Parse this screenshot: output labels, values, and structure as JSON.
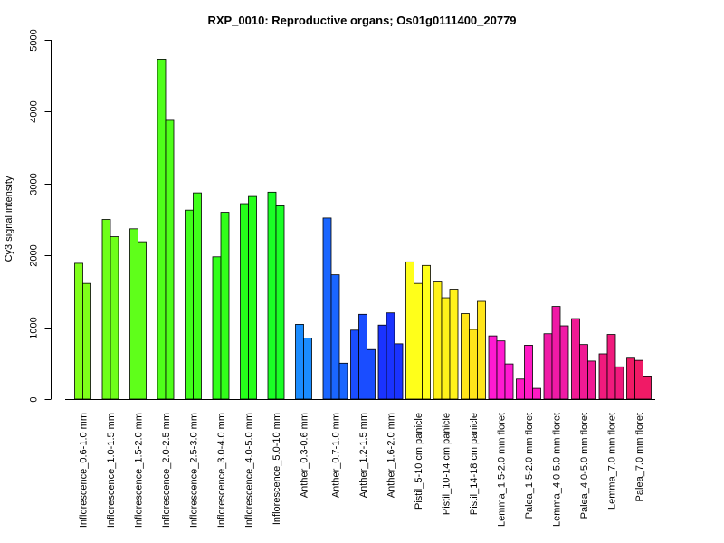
{
  "chart_data": {
    "type": "bar",
    "title": "RXP_0010: Reproductive organs; Os01g0111400_20779",
    "ylabel": "Cy3 signal intensity",
    "xlabel": "",
    "ylim": [
      0,
      5000
    ],
    "yticks": [
      0,
      1000,
      2000,
      3000,
      4000,
      5000
    ],
    "grid": false,
    "legend": "none",
    "groups": [
      {
        "label": "Inflorescence_0.6-1.0 mm",
        "color": "#7FFF1A",
        "values": [
          1890,
          1610
        ]
      },
      {
        "label": "Inflorescence_1.0-1.5 mm",
        "color": "#6FFF1A",
        "values": [
          2500,
          2260
        ]
      },
      {
        "label": "Inflorescence_1.5-2.0 mm",
        "color": "#5FFF1A",
        "values": [
          2370,
          2190
        ]
      },
      {
        "label": "Inflorescence_2.0-2.5 mm",
        "color": "#4FFF1A",
        "values": [
          4730,
          3880
        ]
      },
      {
        "label": "Inflorescence_2.5-3.0 mm",
        "color": "#40FF1A",
        "values": [
          2630,
          2870
        ]
      },
      {
        "label": "Inflorescence_3.0-4.0 mm",
        "color": "#32FF1A",
        "values": [
          1980,
          2600
        ]
      },
      {
        "label": "Inflorescence_4.0-5.0 mm",
        "color": "#26FF1A",
        "values": [
          2720,
          2820
        ]
      },
      {
        "label": "Inflorescence_5.0-10 mm",
        "color": "#1AFF26",
        "values": [
          2880,
          2690
        ]
      },
      {
        "label": "Anther_0.3-0.6 mm",
        "color": "#1A8CFF",
        "values": [
          1040,
          850
        ]
      },
      {
        "label": "Anther_0.7-1.0 mm",
        "color": "#1A66FF",
        "values": [
          2520,
          1730,
          500
        ]
      },
      {
        "label": "Anther_1.2-1.5 mm",
        "color": "#1A4DFF",
        "values": [
          960,
          1180,
          690
        ]
      },
      {
        "label": "Anther_1.6-2.0 mm",
        "color": "#1A33FF",
        "values": [
          1030,
          1200,
          770
        ]
      },
      {
        "label": "Pistil_5-10 cm panicle",
        "color": "#FFFF1A",
        "values": [
          1910,
          1610,
          1860
        ]
      },
      {
        "label": "Pistil_10-14 cm panicle",
        "color": "#FFF21A",
        "values": [
          1630,
          1410,
          1530
        ]
      },
      {
        "label": "Pistil_14-18 cm panicle",
        "color": "#FFE51A",
        "values": [
          1190,
          970,
          1360
        ]
      },
      {
        "label": "Lemma_1.5-2.0 mm floret",
        "color": "#FF1AD1",
        "values": [
          880,
          810,
          490
        ]
      },
      {
        "label": "Palea_1.5-2.0 mm floret",
        "color": "#FF1AC4",
        "values": [
          280,
          750,
          150
        ]
      },
      {
        "label": "Lemma_4.0-5.0 mm floret",
        "color": "#F01AA6",
        "values": [
          910,
          1290,
          1020
        ]
      },
      {
        "label": "Palea_4.0-5.0 mm floret",
        "color": "#F01A94",
        "values": [
          1120,
          760,
          530
        ]
      },
      {
        "label": "Lemma_7.0 mm floret",
        "color": "#F01A7D",
        "values": [
          630,
          900,
          450
        ]
      },
      {
        "label": "Palea_7.0 mm floret",
        "color": "#F01A66",
        "values": [
          570,
          540,
          310
        ]
      }
    ]
  }
}
